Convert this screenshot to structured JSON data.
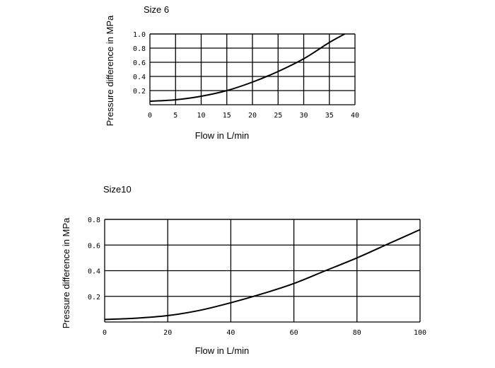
{
  "chart_data": [
    {
      "type": "line",
      "title": "Size 6",
      "xlabel": "Flow in L/min",
      "ylabel": "Pressure difference in MPa",
      "xlim": [
        0,
        40
      ],
      "ylim": [
        0,
        1.0
      ],
      "x_ticks": [
        0,
        5,
        10,
        15,
        20,
        25,
        30,
        35,
        40
      ],
      "y_ticks": [
        "0.2",
        "0.4",
        "0.6",
        "0.8",
        "1.0"
      ],
      "grid": true,
      "series": [
        {
          "x": [
            0,
            5,
            10,
            15,
            20,
            25,
            30,
            35,
            38
          ],
          "y": [
            0.05,
            0.07,
            0.12,
            0.2,
            0.32,
            0.47,
            0.65,
            0.88,
            1.0
          ]
        }
      ]
    },
    {
      "type": "line",
      "title": "Size10",
      "xlabel": "Flow in L/min",
      "ylabel": "Pressure difference in MPa",
      "xlim": [
        0,
        100
      ],
      "ylim": [
        0,
        0.8
      ],
      "x_ticks": [
        0,
        20,
        40,
        60,
        80,
        100
      ],
      "y_ticks": [
        "0.2",
        "0.4",
        "0.6",
        "0.8"
      ],
      "grid": true,
      "series": [
        {
          "x": [
            0,
            10,
            20,
            30,
            40,
            50,
            60,
            70,
            80,
            90,
            100
          ],
          "y": [
            0.02,
            0.03,
            0.05,
            0.09,
            0.15,
            0.22,
            0.3,
            0.4,
            0.5,
            0.61,
            0.72
          ]
        }
      ]
    }
  ]
}
